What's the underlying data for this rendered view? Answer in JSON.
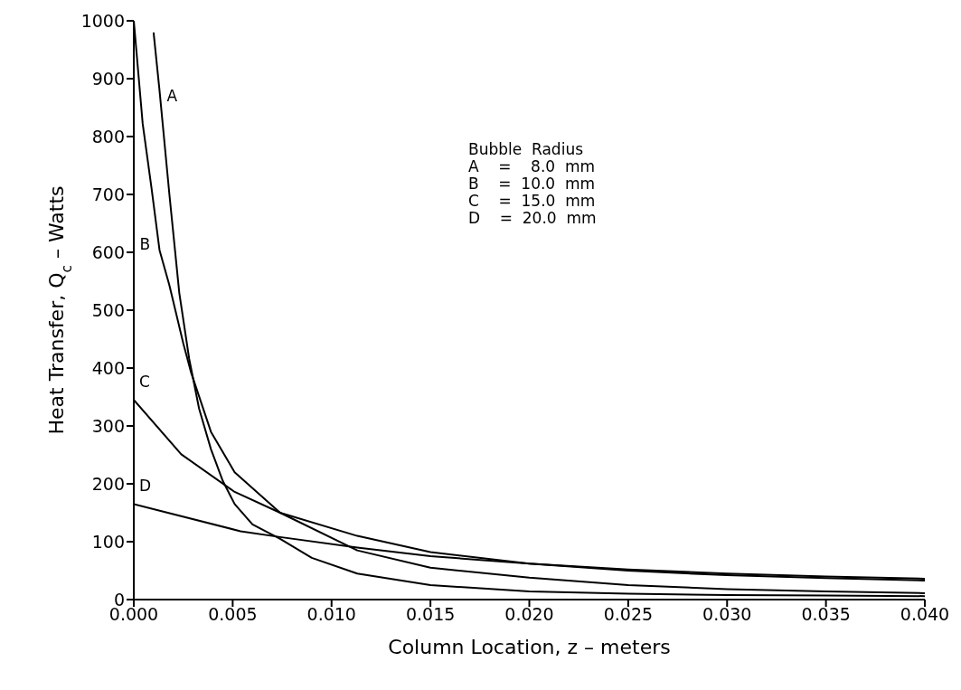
{
  "chart_data": {
    "type": "line",
    "xlabel": "Column Location, z – meters",
    "ylabel": "Heat Transfer, Q$_{c}$ – Watts",
    "xlim": [
      0,
      0.04
    ],
    "xticks": [
      {
        "value": 0,
        "label": "0.000"
      },
      {
        "value": 0.005,
        "label": "0.005"
      },
      {
        "value": 0.01,
        "label": "0.010"
      },
      {
        "value": 0.015,
        "label": "0.015"
      },
      {
        "value": 0.02,
        "label": "0.020"
      },
      {
        "value": 0.025,
        "label": "0.025"
      },
      {
        "value": 0.03,
        "label": "0.030"
      },
      {
        "value": 0.035,
        "label": "0.035"
      },
      {
        "value": 0.04,
        "label": "0.040"
      }
    ],
    "ylim": [
      0,
      1000
    ],
    "yticks": [
      0,
      100,
      200,
      300,
      400,
      500,
      600,
      700,
      800,
      900,
      1000
    ],
    "marker": "none",
    "line_style": "solid",
    "annotations": [
      "Bubble  Radius",
      "A    =    8.0  mm",
      "B    =  10.0  mm",
      "C    =  15.0  mm",
      "D    =  20.0  mm"
    ],
    "series": [
      {
        "name": "A",
        "color": "#000000",
        "x": [
          0.001,
          0.0013,
          0.0018,
          0.0023,
          0.0028,
          0.0033,
          0.0039,
          0.0045,
          0.0051,
          0.006,
          0.0074,
          0.009,
          0.0113,
          0.015,
          0.02,
          0.025,
          0.03,
          0.035,
          0.04
        ],
        "values": [
          980,
          880,
          700,
          530,
          416,
          330,
          260,
          205,
          165,
          130,
          105,
          72,
          45,
          25,
          14,
          10,
          8,
          7,
          6
        ]
      },
      {
        "name": "B",
        "color": "#000000",
        "x": [
          0,
          0.00045,
          0.0009,
          0.0013,
          0.0018,
          0.0025,
          0.0029,
          0.0039,
          0.0051,
          0.0074,
          0.0113,
          0.015,
          0.02,
          0.025,
          0.03,
          0.035,
          0.04
        ],
        "values": [
          1000,
          822,
          710,
          604,
          543,
          443,
          392,
          290,
          220,
          150,
          85,
          55,
          38,
          25,
          18,
          14,
          11
        ]
      },
      {
        "name": "C",
        "color": "#000000",
        "x": [
          0,
          0.0024,
          0.0051,
          0.0074,
          0.0113,
          0.015,
          0.02,
          0.025,
          0.03,
          0.035,
          0.04
        ],
        "values": [
          345,
          251,
          186,
          150,
          110,
          82,
          62,
          50,
          42,
          37,
          33
        ]
      },
      {
        "name": "D",
        "color": "#000000",
        "x": [
          0,
          0.0054,
          0.0074,
          0.0113,
          0.015,
          0.02,
          0.025,
          0.03,
          0.035,
          0.04
        ],
        "values": [
          165,
          118,
          108,
          90,
          75,
          62,
          52,
          45,
          40,
          36
        ]
      }
    ]
  }
}
